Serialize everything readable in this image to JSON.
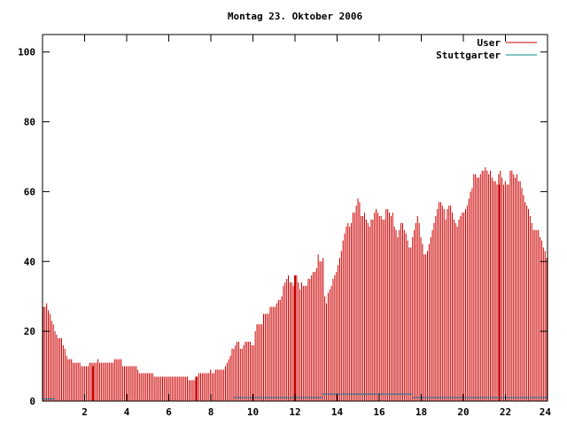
{
  "chart_data": {
    "type": "bar",
    "title": "Montag 23. Oktober 2006",
    "xlabel": "",
    "ylabel": "",
    "xlim": [
      0,
      24
    ],
    "ylim": [
      0,
      105
    ],
    "x_ticks": [
      2,
      4,
      6,
      8,
      10,
      12,
      14,
      16,
      18,
      20,
      22,
      24
    ],
    "y_ticks": [
      0,
      20,
      40,
      60,
      80,
      100
    ],
    "grid": false,
    "legend_position": "top-right",
    "sample_interval_hours": 0.0833,
    "series": [
      {
        "name": "User",
        "color": "#cc0000",
        "values": [
          27,
          27,
          28,
          26,
          25,
          23,
          22,
          20,
          19,
          18,
          18,
          18,
          16,
          15,
          13,
          12,
          12,
          12,
          11,
          11,
          11,
          11,
          11,
          10,
          10,
          10,
          10,
          10,
          11,
          11,
          11,
          11,
          11,
          12,
          11,
          11,
          11,
          11,
          11,
          11,
          11,
          11,
          11,
          12,
          12,
          12,
          12,
          12,
          10,
          10,
          10,
          10,
          10,
          10,
          10,
          10,
          10,
          9,
          8,
          8,
          8,
          8,
          8,
          8,
          8,
          8,
          8,
          7,
          7,
          7,
          7,
          7,
          7,
          7,
          7,
          7,
          7,
          7,
          7,
          7,
          7,
          7,
          7,
          7,
          7,
          7,
          7,
          7,
          6,
          6,
          6,
          6,
          6,
          7,
          8,
          8,
          8,
          8,
          8,
          8,
          8,
          9,
          8,
          8,
          9,
          9,
          9,
          9,
          9,
          9,
          10,
          11,
          12,
          13,
          15,
          15,
          16,
          17,
          17,
          15,
          15,
          16,
          17,
          17,
          17,
          17,
          16,
          16,
          20,
          22,
          22,
          22,
          22,
          25,
          25,
          25,
          25,
          27,
          27,
          27,
          27,
          28,
          29,
          29,
          30,
          33,
          34,
          35,
          36,
          34,
          34,
          33,
          35,
          36,
          34,
          32,
          34,
          33,
          33,
          33,
          35,
          35,
          36,
          37,
          37,
          38,
          42,
          40,
          40,
          41,
          30,
          28,
          31,
          32,
          33,
          35,
          36,
          37,
          39,
          41,
          43,
          46,
          48,
          50,
          51,
          50,
          51,
          54,
          54,
          56,
          58,
          57,
          53,
          53,
          54,
          52,
          51,
          50,
          52,
          52,
          54,
          55,
          54,
          53,
          53,
          52,
          52,
          55,
          55,
          54,
          53,
          54,
          50,
          49,
          47,
          49,
          51,
          51,
          49,
          48,
          46,
          44,
          44,
          47,
          49,
          51,
          53,
          51,
          47,
          45,
          42,
          42,
          43,
          45,
          47,
          49,
          51,
          53,
          55,
          57,
          57,
          56,
          55,
          52,
          55,
          56,
          56,
          54,
          52,
          51,
          50,
          52,
          53,
          54,
          54,
          55,
          56,
          58,
          60,
          61,
          65,
          65,
          64,
          64,
          65,
          66,
          66,
          67,
          66,
          65,
          66,
          64,
          63,
          63,
          62,
          65,
          66,
          64,
          62,
          63,
          62,
          62,
          66,
          66,
          65,
          64,
          65,
          63,
          63,
          61,
          59,
          57,
          56,
          55,
          53,
          51,
          49,
          49,
          49,
          49,
          47,
          46,
          44,
          43,
          41
        ]
      },
      {
        "name": "Stuttgarter",
        "color": "#008b8b",
        "segments": [
          {
            "from": 0.0,
            "to": 0.6,
            "value": 0.6
          },
          {
            "from": 9.1,
            "to": 13.3,
            "value": 1
          },
          {
            "from": 13.3,
            "to": 17.6,
            "value": 2
          },
          {
            "from": 17.6,
            "to": 24.0,
            "value": 1
          }
        ]
      }
    ],
    "highlight_bars": [
      {
        "x": 2.4,
        "value": 10
      },
      {
        "x": 7.3,
        "value": 7
      },
      {
        "x": 12.0,
        "value": 36
      },
      {
        "x": 21.7,
        "value": 62
      }
    ]
  }
}
